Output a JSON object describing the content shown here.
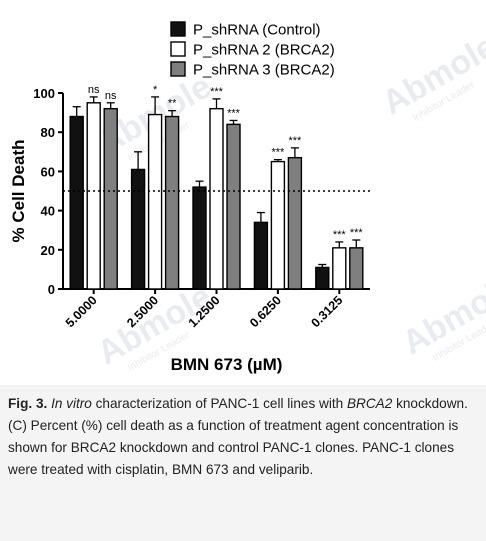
{
  "brand": {
    "watermark": "Abmole",
    "watermark_tag": "Inhibitor Leader"
  },
  "caption": {
    "fig_label": "Fig. 3.",
    "t1_italic": "In vitro",
    "t2": " characterization of PANC-1 cell lines with ",
    "t3_italic": "BRCA2",
    "t4": " knockdown.  (C) Percent (%) cell death as a function of treatment agent concentration is shown for  BRCA2 knockdown and control PANC-1 clones. PANC-1 clones were treated with cisplatin, BMN 673 and veliparib."
  },
  "chart_data": {
    "type": "bar",
    "xlabel": "BMN 673 (µM)",
    "ylabel": "% Cell Death",
    "ylim": [
      0,
      100
    ],
    "yticks": [
      0,
      20,
      40,
      60,
      80,
      100
    ],
    "categories": [
      "5.0000",
      "2.5000",
      "1.2500",
      "0.6250",
      "0.3125"
    ],
    "reference_line": 50,
    "legend_position": "top",
    "series": [
      {
        "name": "P_shRNA (Control)",
        "color": "#000000",
        "fill": "#111111",
        "values": [
          88,
          61,
          52,
          34,
          11
        ],
        "errors": [
          5,
          9,
          3,
          5,
          1.5
        ],
        "sig": [
          "",
          "",
          "",
          "",
          ""
        ]
      },
      {
        "name": "P_shRNA 2 (BRCA2)",
        "color": "#000000",
        "fill": "#ffffff",
        "values": [
          95,
          89,
          92,
          65,
          21
        ],
        "errors": [
          3,
          9,
          5,
          1,
          3
        ],
        "sig": [
          "ns",
          "*",
          "***",
          "***",
          "***"
        ]
      },
      {
        "name": "P_shRNA 3 (BRCA2)",
        "color": "#000000",
        "fill": "#7f7f7f",
        "values": [
          92,
          88,
          84,
          67,
          21
        ],
        "errors": [
          3,
          3,
          2,
          5,
          4
        ],
        "sig": [
          "ns",
          "**",
          "***",
          "***",
          "***"
        ]
      }
    ]
  }
}
